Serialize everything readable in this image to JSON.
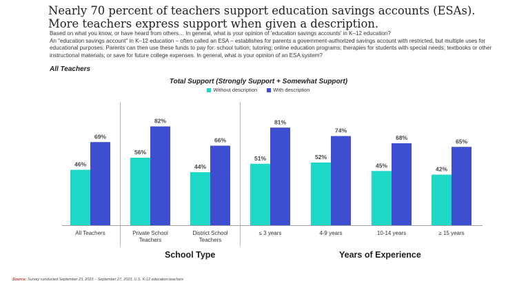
{
  "headline": "Nearly 70 percent of teachers support education savings accounts (ESAs). More teachers express support when given a description.",
  "question_lines": [
    "Based on what you know, or have heard from others… In general, what is your opinion of 'education savings accounts' in K–12 education?",
    "An \"education savings account\" in K–12 education – often called an ESA – establishes for parents a government-authorized  savings account with restricted, but multiple uses for educational purposes. Parents can then use these funds to pay for: school tuition; tutoring; online education programs; therapies for students with special needs; textbooks or other instructional materials; or save for future college expenses.  In general, what is your opinion of an ESA system?"
  ],
  "subset_label": "All Teachers",
  "source": {
    "label": "Source:",
    "text": "Survey conducted September 23, 2023 – September 27, 2023, U.S. K-12 education teachers"
  },
  "colors": {
    "without": "#1ed9c8",
    "with": "#3d4fd0",
    "divider": "#b8b8b8",
    "axis": "#a0a0a0"
  },
  "chart_data": {
    "type": "bar",
    "title": "Total Support (Strongly Support + Somewhat Support)",
    "value_suffix": "%",
    "ylim": [
      0,
      100
    ],
    "categories": [
      [
        "All Teachers"
      ],
      [
        "Private School",
        "Teachers"
      ],
      [
        "District School",
        "Teachers"
      ],
      [
        "≤ 3 years"
      ],
      [
        "4-9 years"
      ],
      [
        "10-14 years"
      ],
      [
        "≥ 15 years"
      ]
    ],
    "series": [
      {
        "name": "Without description",
        "values": [
          46,
          56,
          44,
          51,
          52,
          45,
          42
        ]
      },
      {
        "name": "With description",
        "values": [
          69,
          82,
          66,
          81,
          74,
          68,
          65
        ]
      }
    ],
    "groups": [
      {
        "label": "School Type",
        "categories": [
          1,
          2
        ]
      },
      {
        "label": "Years of Experience",
        "categories": [
          3,
          4,
          5,
          6
        ]
      }
    ]
  }
}
